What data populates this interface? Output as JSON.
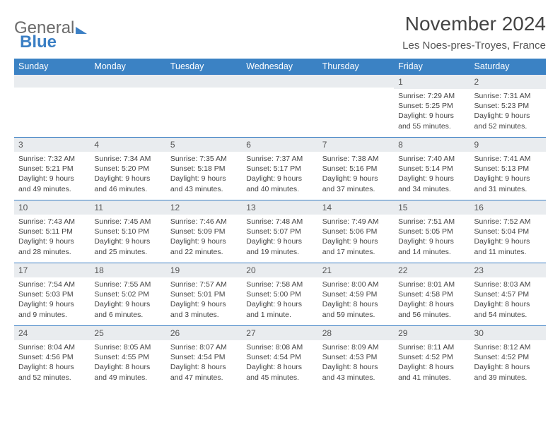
{
  "logo": {
    "part1": "General",
    "part2": "Blue"
  },
  "title": "November 2024",
  "location": "Les Noes-pres-Troyes, France",
  "colors": {
    "header_bg": "#3b82c4",
    "header_text": "#ffffff",
    "daynum_bg": "#e9ecef",
    "border": "#3b7fc4",
    "text": "#444444"
  },
  "typography": {
    "title_fontsize": 28,
    "location_fontsize": 15,
    "dow_fontsize": 12.5,
    "daynum_fontsize": 12,
    "body_fontsize": 10.5
  },
  "days_of_week": [
    "Sunday",
    "Monday",
    "Tuesday",
    "Wednesday",
    "Thursday",
    "Friday",
    "Saturday"
  ],
  "weeks": [
    [
      null,
      null,
      null,
      null,
      null,
      {
        "n": "1",
        "sunrise": "Sunrise: 7:29 AM",
        "sunset": "Sunset: 5:25 PM",
        "daylight": "Daylight: 9 hours and 55 minutes."
      },
      {
        "n": "2",
        "sunrise": "Sunrise: 7:31 AM",
        "sunset": "Sunset: 5:23 PM",
        "daylight": "Daylight: 9 hours and 52 minutes."
      }
    ],
    [
      {
        "n": "3",
        "sunrise": "Sunrise: 7:32 AM",
        "sunset": "Sunset: 5:21 PM",
        "daylight": "Daylight: 9 hours and 49 minutes."
      },
      {
        "n": "4",
        "sunrise": "Sunrise: 7:34 AM",
        "sunset": "Sunset: 5:20 PM",
        "daylight": "Daylight: 9 hours and 46 minutes."
      },
      {
        "n": "5",
        "sunrise": "Sunrise: 7:35 AM",
        "sunset": "Sunset: 5:18 PM",
        "daylight": "Daylight: 9 hours and 43 minutes."
      },
      {
        "n": "6",
        "sunrise": "Sunrise: 7:37 AM",
        "sunset": "Sunset: 5:17 PM",
        "daylight": "Daylight: 9 hours and 40 minutes."
      },
      {
        "n": "7",
        "sunrise": "Sunrise: 7:38 AM",
        "sunset": "Sunset: 5:16 PM",
        "daylight": "Daylight: 9 hours and 37 minutes."
      },
      {
        "n": "8",
        "sunrise": "Sunrise: 7:40 AM",
        "sunset": "Sunset: 5:14 PM",
        "daylight": "Daylight: 9 hours and 34 minutes."
      },
      {
        "n": "9",
        "sunrise": "Sunrise: 7:41 AM",
        "sunset": "Sunset: 5:13 PM",
        "daylight": "Daylight: 9 hours and 31 minutes."
      }
    ],
    [
      {
        "n": "10",
        "sunrise": "Sunrise: 7:43 AM",
        "sunset": "Sunset: 5:11 PM",
        "daylight": "Daylight: 9 hours and 28 minutes."
      },
      {
        "n": "11",
        "sunrise": "Sunrise: 7:45 AM",
        "sunset": "Sunset: 5:10 PM",
        "daylight": "Daylight: 9 hours and 25 minutes."
      },
      {
        "n": "12",
        "sunrise": "Sunrise: 7:46 AM",
        "sunset": "Sunset: 5:09 PM",
        "daylight": "Daylight: 9 hours and 22 minutes."
      },
      {
        "n": "13",
        "sunrise": "Sunrise: 7:48 AM",
        "sunset": "Sunset: 5:07 PM",
        "daylight": "Daylight: 9 hours and 19 minutes."
      },
      {
        "n": "14",
        "sunrise": "Sunrise: 7:49 AM",
        "sunset": "Sunset: 5:06 PM",
        "daylight": "Daylight: 9 hours and 17 minutes."
      },
      {
        "n": "15",
        "sunrise": "Sunrise: 7:51 AM",
        "sunset": "Sunset: 5:05 PM",
        "daylight": "Daylight: 9 hours and 14 minutes."
      },
      {
        "n": "16",
        "sunrise": "Sunrise: 7:52 AM",
        "sunset": "Sunset: 5:04 PM",
        "daylight": "Daylight: 9 hours and 11 minutes."
      }
    ],
    [
      {
        "n": "17",
        "sunrise": "Sunrise: 7:54 AM",
        "sunset": "Sunset: 5:03 PM",
        "daylight": "Daylight: 9 hours and 9 minutes."
      },
      {
        "n": "18",
        "sunrise": "Sunrise: 7:55 AM",
        "sunset": "Sunset: 5:02 PM",
        "daylight": "Daylight: 9 hours and 6 minutes."
      },
      {
        "n": "19",
        "sunrise": "Sunrise: 7:57 AM",
        "sunset": "Sunset: 5:01 PM",
        "daylight": "Daylight: 9 hours and 3 minutes."
      },
      {
        "n": "20",
        "sunrise": "Sunrise: 7:58 AM",
        "sunset": "Sunset: 5:00 PM",
        "daylight": "Daylight: 9 hours and 1 minute."
      },
      {
        "n": "21",
        "sunrise": "Sunrise: 8:00 AM",
        "sunset": "Sunset: 4:59 PM",
        "daylight": "Daylight: 8 hours and 59 minutes."
      },
      {
        "n": "22",
        "sunrise": "Sunrise: 8:01 AM",
        "sunset": "Sunset: 4:58 PM",
        "daylight": "Daylight: 8 hours and 56 minutes."
      },
      {
        "n": "23",
        "sunrise": "Sunrise: 8:03 AM",
        "sunset": "Sunset: 4:57 PM",
        "daylight": "Daylight: 8 hours and 54 minutes."
      }
    ],
    [
      {
        "n": "24",
        "sunrise": "Sunrise: 8:04 AM",
        "sunset": "Sunset: 4:56 PM",
        "daylight": "Daylight: 8 hours and 52 minutes."
      },
      {
        "n": "25",
        "sunrise": "Sunrise: 8:05 AM",
        "sunset": "Sunset: 4:55 PM",
        "daylight": "Daylight: 8 hours and 49 minutes."
      },
      {
        "n": "26",
        "sunrise": "Sunrise: 8:07 AM",
        "sunset": "Sunset: 4:54 PM",
        "daylight": "Daylight: 8 hours and 47 minutes."
      },
      {
        "n": "27",
        "sunrise": "Sunrise: 8:08 AM",
        "sunset": "Sunset: 4:54 PM",
        "daylight": "Daylight: 8 hours and 45 minutes."
      },
      {
        "n": "28",
        "sunrise": "Sunrise: 8:09 AM",
        "sunset": "Sunset: 4:53 PM",
        "daylight": "Daylight: 8 hours and 43 minutes."
      },
      {
        "n": "29",
        "sunrise": "Sunrise: 8:11 AM",
        "sunset": "Sunset: 4:52 PM",
        "daylight": "Daylight: 8 hours and 41 minutes."
      },
      {
        "n": "30",
        "sunrise": "Sunrise: 8:12 AM",
        "sunset": "Sunset: 4:52 PM",
        "daylight": "Daylight: 8 hours and 39 minutes."
      }
    ]
  ]
}
